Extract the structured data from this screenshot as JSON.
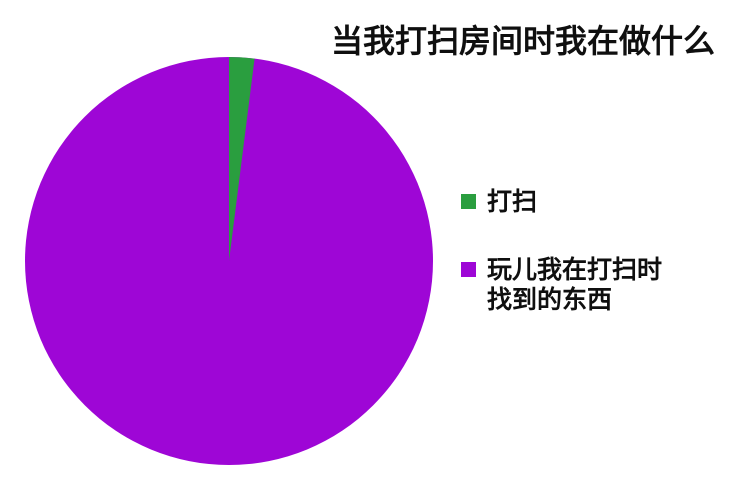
{
  "chart_data": {
    "type": "pie",
    "title": "当我打扫房间时我在做什么",
    "labels": [
      "打扫",
      "玩儿我在打扫时找到的东西"
    ],
    "values": [
      2,
      98
    ],
    "colors": [
      "#2a9e3f",
      "#9e06d6"
    ],
    "start_angle_deg": 0,
    "direction": "clockwise",
    "legend_position": "right",
    "background": "#ffffff",
    "text_color": "#0f0f0f"
  },
  "legend": {
    "items": [
      {
        "label": "打扫",
        "color": "#2a9e3f",
        "lines": [
          "打扫"
        ]
      },
      {
        "label": "玩儿我在打扫时找到的东西",
        "color": "#9e06d6",
        "lines": [
          "玩儿我在打扫时",
          "找到的东西"
        ]
      }
    ]
  }
}
